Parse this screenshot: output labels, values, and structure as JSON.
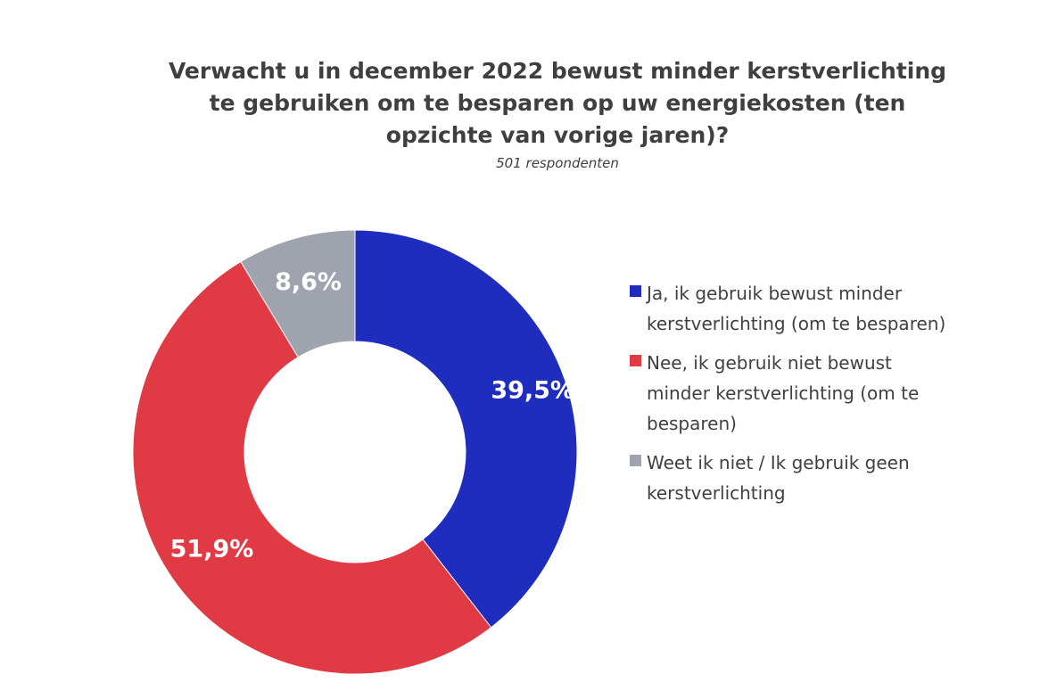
{
  "chart_data": {
    "type": "pie",
    "subtype": "donut",
    "title": "Verwacht u in december 2022 bewust minder kerstverlichting te gebruiken om te besparen op uw energiekosten (ten opzichte van vorige jaren)?",
    "subtitle": "501 respondenten",
    "legend_position": "right",
    "slices": [
      {
        "name": "Ja, ik gebruik bewust minder kerstverlichting (om te besparen)",
        "value": 39.5,
        "label": "39,5%",
        "color": "#1f2dbf"
      },
      {
        "name": "Nee, ik gebruik niet bewust minder kerstverlichting (om te besparen)",
        "value": 51.9,
        "label": "51,9%",
        "color": "#e03a45"
      },
      {
        "name": "Weet ik niet / Ik gebruik geen kerstverlichting",
        "value": 8.6,
        "label": "8,6%",
        "color": "#9ea3ad"
      }
    ]
  }
}
